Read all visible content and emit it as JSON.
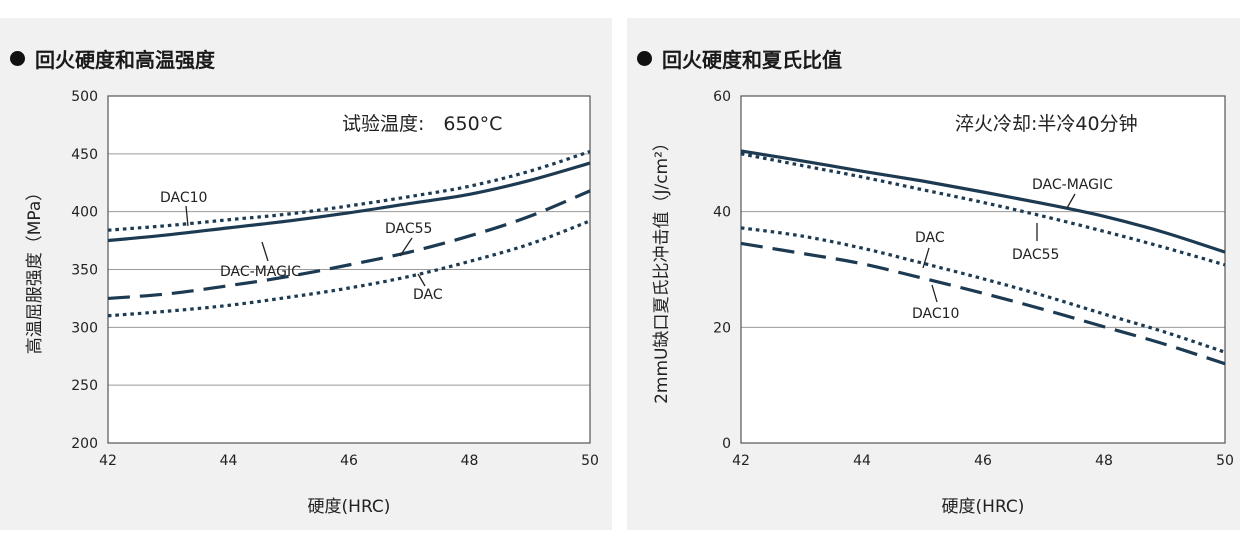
{
  "colors": {
    "line": "#1c3a52",
    "grid": "#9a9a9a",
    "panel_bg": "#f1f1f1"
  },
  "chart_data": [
    {
      "type": "line",
      "title": "回火硬度和高温强度",
      "xlabel": "硬度(HRC)",
      "ylabel": "高温屈服强度（MPa）",
      "xlim": [
        42,
        50
      ],
      "ylim": [
        200,
        500
      ],
      "xticks": [
        "42",
        "44",
        "46",
        "48",
        "50"
      ],
      "yticks": [
        "200",
        "250",
        "300",
        "350",
        "400",
        "450",
        "500"
      ],
      "grid": true,
      "annotation": "试验温度:　650°C",
      "series": [
        {
          "name": "DAC10",
          "style": "dotted",
          "x": [
            42,
            43,
            44,
            45,
            46,
            47,
            48,
            49,
            50
          ],
          "y": [
            384,
            388,
            393,
            398,
            405,
            413,
            422,
            435,
            452
          ]
        },
        {
          "name": "DAC-MAGIC",
          "style": "solid",
          "x": [
            42,
            43,
            44,
            45,
            46,
            47,
            48,
            49,
            50
          ],
          "y": [
            375,
            380,
            386,
            392,
            399,
            407,
            415,
            427,
            442
          ]
        },
        {
          "name": "DAC55",
          "style": "dashed",
          "x": [
            42,
            43,
            44,
            45,
            46,
            47,
            48,
            49,
            50
          ],
          "y": [
            325,
            329,
            336,
            344,
            354,
            365,
            379,
            396,
            418
          ]
        },
        {
          "name": "DAC",
          "style": "dotted",
          "x": [
            42,
            43,
            44,
            45,
            46,
            47,
            48,
            49,
            50
          ],
          "y": [
            310,
            314,
            319,
            326,
            334,
            344,
            357,
            372,
            392
          ]
        }
      ],
      "labels": [
        {
          "text": "DAC10",
          "series": "DAC10"
        },
        {
          "text": "DAC-MAGIC",
          "series": "DAC-MAGIC"
        },
        {
          "text": "DAC55",
          "series": "DAC55"
        },
        {
          "text": "DAC",
          "series": "DAC"
        }
      ]
    },
    {
      "type": "line",
      "title": "回火硬度和夏氏比值",
      "xlabel": "硬度(HRC)",
      "ylabel": "2mmU缺口夏氏比冲击值（J/cm²）",
      "xlim": [
        42,
        50
      ],
      "ylim": [
        0,
        60
      ],
      "xticks": [
        "42",
        "44",
        "46",
        "48",
        "50"
      ],
      "yticks": [
        "0",
        "20",
        "40",
        "60"
      ],
      "grid": true,
      "annotation": "淬火冷却:半冷40分钟",
      "series": [
        {
          "name": "DAC-MAGIC",
          "style": "solid",
          "x": [
            42,
            43,
            44,
            45,
            46,
            47,
            48,
            49,
            50
          ],
          "y": [
            50.5,
            48.8,
            47,
            45.3,
            43.4,
            41.4,
            39.2,
            36.4,
            33
          ]
        },
        {
          "name": "DAC55",
          "style": "dotted",
          "x": [
            42,
            43,
            44,
            45,
            46,
            47,
            48,
            49,
            50
          ],
          "y": [
            50,
            48,
            46,
            43.8,
            41.6,
            39.2,
            36.6,
            33.8,
            30.8
          ]
        },
        {
          "name": "DAC",
          "style": "dotted",
          "x": [
            42,
            43,
            44,
            45,
            46,
            47,
            48,
            49,
            50
          ],
          "y": [
            37.2,
            35.8,
            33.7,
            31.1,
            28.4,
            25.5,
            22.3,
            19.2,
            15.7
          ]
        },
        {
          "name": "DAC10",
          "style": "dashed",
          "x": [
            42,
            43,
            44,
            45,
            46,
            47,
            48,
            49,
            50
          ],
          "y": [
            34.5,
            32.8,
            31,
            28.5,
            25.9,
            23.1,
            20.1,
            17.1,
            13.7
          ]
        }
      ],
      "labels": [
        {
          "text": "DAC-MAGIC",
          "series": "DAC-MAGIC"
        },
        {
          "text": "DAC55",
          "series": "DAC55"
        },
        {
          "text": "DAC",
          "series": "DAC"
        },
        {
          "text": "DAC10",
          "series": "DAC10"
        }
      ]
    }
  ]
}
